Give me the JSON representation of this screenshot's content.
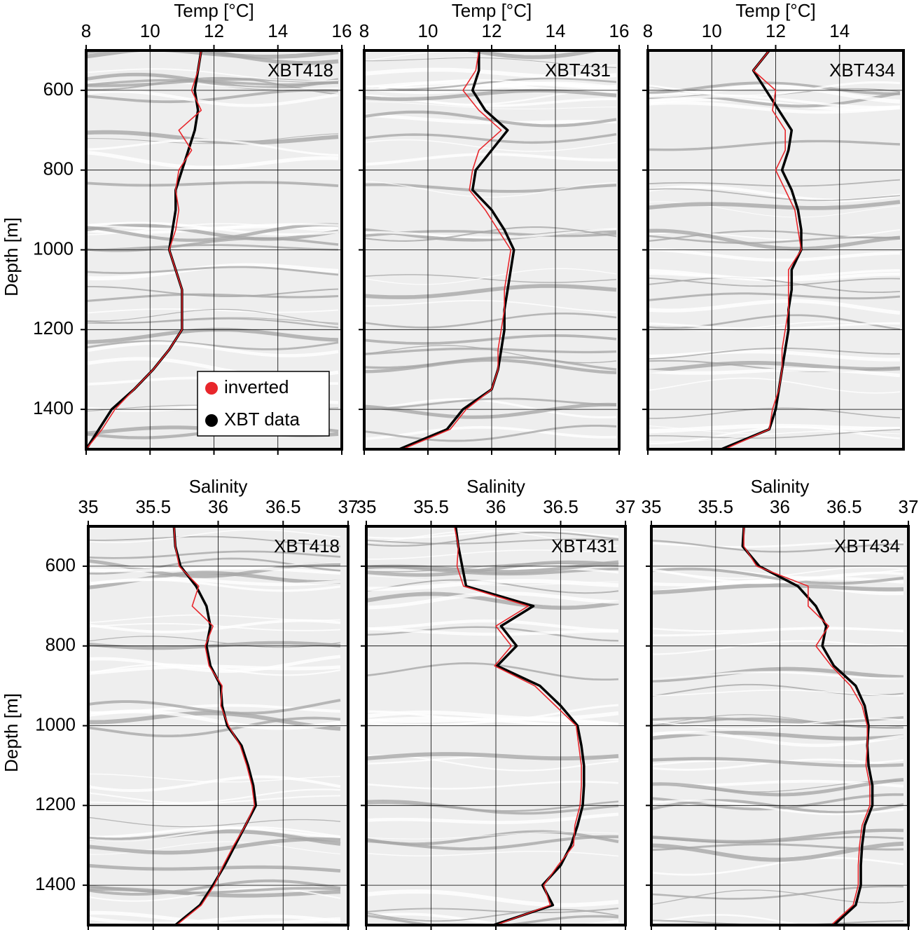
{
  "chart_data": [
    {
      "type": "line",
      "title": "Temp [°C]",
      "annotation": "XBT418",
      "ylabel": "Depth [m]",
      "xlim": [
        8,
        16
      ],
      "xticks": [
        8,
        10,
        12,
        14,
        16
      ],
      "ylim": [
        1500,
        500
      ],
      "yticks": [
        600,
        800,
        1000,
        1200,
        1400
      ],
      "ytick_labels": true,
      "grid": true,
      "legend": "lower right",
      "y": [
        500,
        550,
        600,
        650,
        700,
        750,
        800,
        850,
        900,
        950,
        1000,
        1050,
        1100,
        1150,
        1200,
        1250,
        1300,
        1350,
        1400,
        1450,
        1500
      ],
      "series": [
        {
          "name": "inverted",
          "color": "#e8262b",
          "values": [
            11.6,
            11.5,
            11.3,
            11.6,
            10.9,
            11.3,
            10.9,
            10.8,
            10.9,
            10.8,
            10.6,
            10.8,
            11.0,
            11.0,
            11.0,
            10.6,
            10.1,
            9.5,
            8.9,
            8.5,
            8.0
          ]
        },
        {
          "name": "XBT data",
          "color": "#000000",
          "values": [
            11.6,
            11.5,
            11.4,
            11.5,
            11.4,
            11.2,
            11.0,
            10.8,
            10.8,
            10.7,
            10.6,
            10.8,
            11.0,
            11.0,
            11.0,
            10.6,
            10.1,
            9.5,
            8.8,
            8.4,
            8.0
          ]
        }
      ]
    },
    {
      "type": "line",
      "title": "Temp [°C]",
      "annotation": "XBT431",
      "xlim": [
        8,
        16
      ],
      "xticks": [
        8,
        10,
        12,
        14,
        16
      ],
      "ylim": [
        1500,
        500
      ],
      "yticks": [
        600,
        800,
        1000,
        1200,
        1400
      ],
      "ytick_labels": false,
      "grid": true,
      "y": [
        500,
        550,
        600,
        650,
        700,
        750,
        800,
        850,
        900,
        950,
        1000,
        1050,
        1100,
        1150,
        1200,
        1250,
        1300,
        1350,
        1400,
        1450,
        1500
      ],
      "series": [
        {
          "color": "#e8262b",
          "values": [
            11.6,
            11.5,
            11.1,
            11.6,
            12.3,
            11.6,
            11.4,
            11.3,
            11.8,
            12.2,
            12.6,
            12.5,
            12.4,
            12.4,
            12.3,
            12.2,
            12.2,
            12.0,
            11.2,
            10.7,
            9.2
          ]
        },
        {
          "color": "#000000",
          "values": [
            11.6,
            11.6,
            11.4,
            11.8,
            12.5,
            12.0,
            11.5,
            11.4,
            12.0,
            12.4,
            12.7,
            12.6,
            12.5,
            12.4,
            12.4,
            12.3,
            12.2,
            12.0,
            11.1,
            10.6,
            9.1
          ]
        }
      ]
    },
    {
      "type": "line",
      "title": "Temp [°C]",
      "annotation": "XBT434",
      "xlim": [
        8,
        16
      ],
      "xticks": [
        8,
        10,
        12,
        14
      ],
      "ylim": [
        1500,
        500
      ],
      "yticks": [
        600,
        800,
        1000,
        1200,
        1400
      ],
      "ytick_labels": false,
      "grid": true,
      "y": [
        500,
        550,
        600,
        650,
        700,
        750,
        800,
        850,
        900,
        950,
        1000,
        1050,
        1100,
        1150,
        1200,
        1250,
        1300,
        1350,
        1400,
        1450,
        1500
      ],
      "series": [
        {
          "color": "#e8262b",
          "values": [
            11.8,
            11.3,
            12.0,
            11.9,
            12.3,
            12.3,
            12.0,
            12.3,
            12.6,
            12.7,
            12.8,
            12.4,
            12.4,
            12.4,
            12.3,
            12.2,
            12.2,
            12.1,
            11.9,
            11.8,
            10.4
          ]
        },
        {
          "color": "#000000",
          "values": [
            11.8,
            11.3,
            11.7,
            12.1,
            12.5,
            12.4,
            12.2,
            12.5,
            12.7,
            12.8,
            12.8,
            12.5,
            12.5,
            12.4,
            12.4,
            12.3,
            12.2,
            12.1,
            12.0,
            11.8,
            10.3
          ]
        }
      ]
    },
    {
      "type": "line",
      "title": "Salinity",
      "annotation": "XBT418",
      "ylabel": "Depth [m]",
      "xlim": [
        35,
        37
      ],
      "xticks": [
        35,
        35.5,
        36,
        36.5,
        37
      ],
      "ylim": [
        1500,
        500
      ],
      "yticks": [
        600,
        800,
        1000,
        1200,
        1400
      ],
      "ytick_labels": true,
      "grid": true,
      "y": [
        500,
        550,
        600,
        650,
        700,
        750,
        800,
        850,
        900,
        950,
        1000,
        1050,
        1100,
        1150,
        1200,
        1250,
        1300,
        1350,
        1400,
        1450,
        1500
      ],
      "series": [
        {
          "color": "#e8262b",
          "values": [
            35.66,
            35.67,
            35.7,
            35.85,
            35.8,
            35.96,
            35.9,
            35.93,
            36.03,
            36.02,
            36.08,
            36.17,
            36.22,
            36.26,
            36.28,
            36.21,
            36.12,
            36.04,
            35.97,
            35.87,
            35.68
          ]
        },
        {
          "color": "#000000",
          "values": [
            35.66,
            35.67,
            35.71,
            35.83,
            35.91,
            35.94,
            35.91,
            35.94,
            36.02,
            36.03,
            36.07,
            36.18,
            36.23,
            36.27,
            36.29,
            36.21,
            36.13,
            36.05,
            35.96,
            35.86,
            35.67
          ]
        }
      ]
    },
    {
      "type": "line",
      "title": "Salinity",
      "annotation": "XBT431",
      "xlim": [
        35,
        37
      ],
      "xticks": [
        35,
        35.5,
        36,
        36.5,
        37
      ],
      "ylim": [
        1500,
        500
      ],
      "yticks": [
        600,
        800,
        1000,
        1200,
        1400
      ],
      "ytick_labels": false,
      "grid": true,
      "y": [
        500,
        550,
        600,
        650,
        700,
        750,
        800,
        850,
        900,
        950,
        1000,
        1050,
        1100,
        1150,
        1200,
        1250,
        1300,
        1350,
        1400,
        1450,
        1500
      ],
      "series": [
        {
          "color": "#e8262b",
          "values": [
            35.68,
            35.71,
            35.7,
            35.75,
            36.25,
            36.0,
            36.12,
            35.99,
            36.3,
            36.46,
            36.62,
            36.64,
            36.66,
            36.66,
            36.65,
            36.61,
            36.6,
            36.48,
            36.37,
            36.42,
            36.0
          ]
        },
        {
          "color": "#000000",
          "values": [
            35.69,
            35.71,
            35.74,
            35.77,
            36.29,
            36.04,
            36.16,
            36.01,
            36.34,
            36.5,
            36.63,
            36.66,
            36.68,
            36.68,
            36.67,
            36.63,
            36.58,
            36.5,
            36.36,
            36.44,
            35.98
          ]
        }
      ]
    },
    {
      "type": "line",
      "title": "Salinity",
      "annotation": "XBT434",
      "xlim": [
        35,
        37
      ],
      "xticks": [
        35,
        35.5,
        36,
        36.5,
        37
      ],
      "ylim": [
        1500,
        500
      ],
      "yticks": [
        600,
        800,
        1000,
        1200,
        1400
      ],
      "ytick_labels": false,
      "grid": true,
      "y": [
        500,
        550,
        600,
        650,
        700,
        750,
        800,
        850,
        900,
        950,
        1000,
        1050,
        1100,
        1150,
        1200,
        1250,
        1300,
        1350,
        1400,
        1450,
        1500
      ],
      "series": [
        {
          "color": "#e8262b",
          "values": [
            35.72,
            35.72,
            35.82,
            36.22,
            36.22,
            36.38,
            36.28,
            36.4,
            36.55,
            36.64,
            36.68,
            36.68,
            36.67,
            36.7,
            36.7,
            36.64,
            36.62,
            36.61,
            36.61,
            36.57,
            36.4
          ]
        },
        {
          "color": "#000000",
          "values": [
            35.72,
            35.71,
            35.84,
            36.14,
            36.28,
            36.36,
            36.33,
            36.42,
            36.59,
            36.66,
            36.69,
            36.68,
            36.69,
            36.72,
            36.72,
            36.66,
            36.64,
            36.63,
            36.63,
            36.59,
            36.42
          ]
        }
      ]
    }
  ]
}
